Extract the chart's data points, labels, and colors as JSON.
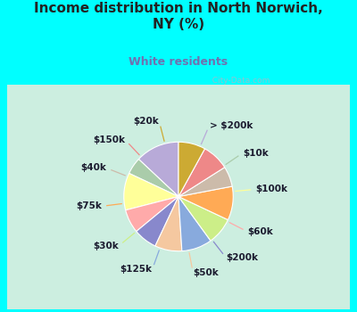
{
  "title": "Income distribution in North Norwich,\nNY (%)",
  "subtitle": "White residents",
  "background_color": "#00ffff",
  "chart_bg_color": "#cceee0",
  "labels": [
    "> $200k",
    "$10k",
    "$100k",
    "$60k",
    "$200k",
    "$50k",
    "$125k",
    "$30k",
    "$75k",
    "$40k",
    "$150k",
    "$20k"
  ],
  "values": [
    13,
    5,
    11,
    7,
    7,
    8,
    9,
    8,
    10,
    6,
    8,
    8
  ],
  "colors": [
    "#b8aad8",
    "#aaccaa",
    "#ffff99",
    "#ffaaaa",
    "#8888cc",
    "#f5c8a0",
    "#88aadd",
    "#ccee88",
    "#ffaa55",
    "#ccbbaa",
    "#ee8888",
    "#ccaa33"
  ],
  "label_fontsize": 7.5,
  "title_fontsize": 11,
  "subtitle_fontsize": 9,
  "startangle": 90,
  "watermark": "  City-Data.com"
}
